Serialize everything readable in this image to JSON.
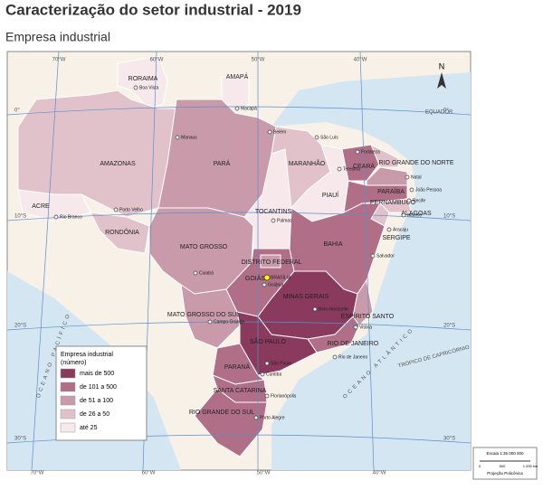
{
  "header": {
    "title": "Caracterização do setor industrial - 2019",
    "subtitle": "Empresa industrial"
  },
  "legend": {
    "title": [
      "Empresa industrial",
      "(número)"
    ],
    "items": [
      {
        "label": "mais de 500",
        "color": "#8a3a5d"
      },
      {
        "label": "de 101 a 500",
        "color": "#b06f86"
      },
      {
        "label": "de 51 a 100",
        "color": "#c99aa9"
      },
      {
        "label": "de 26 a 50",
        "color": "#e2c2ca"
      },
      {
        "label": "até 25",
        "color": "#f6e8eb"
      }
    ]
  },
  "states": [
    {
      "label": "RORAIMA",
      "color": "#f6e8eb"
    },
    {
      "label": "AMAPÁ",
      "color": "#f6e8eb"
    },
    {
      "label": "AMAZONAS",
      "color": "#e2c2ca"
    },
    {
      "label": "ACRE",
      "color": "#f6e8eb"
    },
    {
      "label": "RONDÔNIA",
      "color": "#e2c2ca"
    },
    {
      "label": "PARÁ",
      "color": "#c99aa9"
    },
    {
      "label": "MATO GROSSO",
      "color": "#c99aa9"
    },
    {
      "label": "MATO GROSSO DO SUL",
      "color": "#c99aa9"
    },
    {
      "label": "GOIÁS",
      "color": "#b06f86"
    },
    {
      "label": "TOCANTINS",
      "color": "#f6e8eb"
    },
    {
      "label": "MARANHÃO",
      "color": "#e2c2ca"
    },
    {
      "label": "PIAUÍ",
      "color": "#f6e8eb"
    },
    {
      "label": "CEARÁ",
      "color": "#b06f86"
    },
    {
      "label": "RIO GRANDE DO NORTE",
      "color": "#e2c2ca"
    },
    {
      "label": "PARAÍBA",
      "color": "#c99aa9"
    },
    {
      "label": "PERNAMBUCO",
      "color": "#b06f86"
    },
    {
      "label": "ALAGOAS",
      "color": "#e2c2ca"
    },
    {
      "label": "SERGIPE",
      "color": "#e2c2ca"
    },
    {
      "label": "BAHIA",
      "color": "#b06f86"
    },
    {
      "label": "MINAS GERAIS",
      "color": "#8a3a5d"
    },
    {
      "label": "ESPÍRITO SANTO",
      "color": "#c99aa9"
    },
    {
      "label": "RIO DE JANEIRO",
      "color": "#b06f86"
    },
    {
      "label": "SÃO PAULO",
      "color": "#8a3a5d"
    },
    {
      "label": "PARANÁ",
      "color": "#b06f86"
    },
    {
      "label": "SANTA CATARINA",
      "color": "#b06f86"
    },
    {
      "label": "RIO GRANDE DO SUL",
      "color": "#b06f86"
    },
    {
      "label": "DISTRITO FEDERAL",
      "color": "#c99aa9"
    }
  ],
  "cities": [
    "Boa Vista",
    "Macapá",
    "Manaus",
    "Belém",
    "São Luís",
    "Fortaleza",
    "Teresina",
    "Natal",
    "João Pessoa",
    "Recife",
    "Maceió",
    "Aracaju",
    "Salvador",
    "Palmas",
    "Porto Velho",
    "Rio Branco",
    "Cuiabá",
    "Goiânia",
    "BRASÍLIA",
    "Campo Grande",
    "Belo Horizonte",
    "Vitória",
    "Rio de Janeiro",
    "São Paulo",
    "Curitiba",
    "Florianópolis",
    "Porto Alegre"
  ],
  "graticule": {
    "lon": [
      "70°W",
      "60°W",
      "50°W",
      "40°W"
    ],
    "lat": [
      "0°",
      "10°S",
      "20°S",
      "30°S"
    ]
  },
  "map_labels": [
    "EQUADOR",
    "TRÓPICO DE CAPRICÓRNIO",
    "OCEANO PACÍFICO",
    "OCEANO ATLÂNTICO",
    "N"
  ],
  "scale": {
    "ratio": "Escala 1:35 000 000",
    "ticks": [
      "0",
      "500",
      "1 000 km"
    ],
    "projection": "Projeção Policônica"
  }
}
